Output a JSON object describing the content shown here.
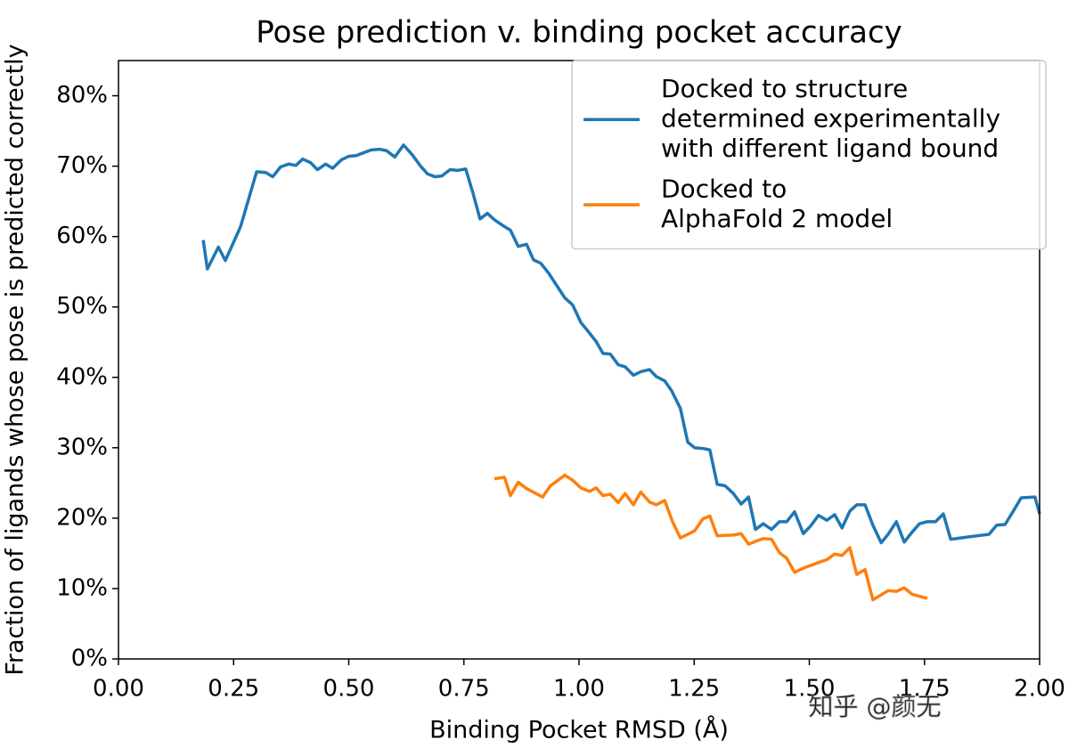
{
  "chart_data": {
    "type": "line",
    "title": "Pose prediction v. binding pocket accuracy",
    "xlabel": "Binding Pocket RMSD (Å)",
    "ylabel": "Fraction of ligands whose pose is predicted correctly",
    "watermark": "知乎 @颜无",
    "xlim": [
      0,
      2.0
    ],
    "ylim": [
      0,
      85
    ],
    "xticks": [
      {
        "value": 0,
        "label": "0.00"
      },
      {
        "value": 0.25,
        "label": "0.25"
      },
      {
        "value": 0.5,
        "label": "0.50"
      },
      {
        "value": 0.75,
        "label": "0.75"
      },
      {
        "value": 1.0,
        "label": "1.00"
      },
      {
        "value": 1.25,
        "label": "1.25"
      },
      {
        "value": 1.5,
        "label": "1.50"
      },
      {
        "value": 1.75,
        "label": "1.75"
      },
      {
        "value": 2.0,
        "label": "2.00"
      }
    ],
    "yticks": [
      {
        "value": 0,
        "label": "0%"
      },
      {
        "value": 10,
        "label": "10%"
      },
      {
        "value": 20,
        "label": "20%"
      },
      {
        "value": 30,
        "label": "30%"
      },
      {
        "value": 40,
        "label": "40%"
      },
      {
        "value": 50,
        "label": "50%"
      },
      {
        "value": 60,
        "label": "60%"
      },
      {
        "value": 70,
        "label": "70%"
      },
      {
        "value": 80,
        "label": "80%"
      }
    ],
    "legend": "upper right",
    "series": [
      {
        "name": "Docked to structure\ndetermined experimentally\nwith different ligand bound",
        "color": "#1f77b4",
        "x": [
          0.184,
          0.193,
          0.217,
          0.232,
          0.25,
          0.265,
          0.3,
          0.32,
          0.335,
          0.352,
          0.37,
          0.385,
          0.4,
          0.417,
          0.432,
          0.45,
          0.465,
          0.484,
          0.5,
          0.516,
          0.532,
          0.549,
          0.567,
          0.582,
          0.6,
          0.619,
          0.638,
          0.656,
          0.671,
          0.687,
          0.702,
          0.72,
          0.737,
          0.754,
          0.77,
          0.785,
          0.801,
          0.816,
          0.836,
          0.851,
          0.868,
          0.886,
          0.901,
          0.917,
          0.934,
          0.952,
          0.969,
          0.986,
          1.004,
          1.019,
          1.037,
          1.052,
          1.068,
          1.085,
          1.1,
          1.118,
          1.134,
          1.153,
          1.168,
          1.186,
          1.201,
          1.22,
          1.236,
          1.251,
          1.269,
          1.284,
          1.3,
          1.317,
          1.335,
          1.352,
          1.368,
          1.383,
          1.4,
          1.418,
          1.435,
          1.451,
          1.468,
          1.487,
          1.503,
          1.52,
          1.538,
          1.555,
          1.571,
          1.588,
          1.603,
          1.621,
          1.638,
          1.656,
          1.671,
          1.689,
          1.706,
          1.723,
          1.739,
          1.756,
          1.774,
          1.791,
          1.807,
          1.841,
          1.89,
          1.907,
          1.925,
          1.942,
          1.96,
          1.99,
          2.0
        ],
        "values": [
          59.5,
          55.4,
          58.5,
          56.6,
          59.2,
          61.4,
          69.2,
          69.1,
          68.5,
          69.9,
          70.3,
          70.1,
          71.0,
          70.5,
          69.5,
          70.3,
          69.7,
          70.9,
          71.4,
          71.5,
          71.9,
          72.3,
          72.4,
          72.2,
          71.3,
          73.0,
          71.6,
          70.0,
          68.9,
          68.5,
          68.6,
          69.5,
          69.4,
          69.6,
          66.1,
          62.5,
          63.3,
          62.4,
          61.5,
          60.9,
          58.6,
          58.9,
          56.7,
          56.2,
          54.8,
          53.0,
          51.3,
          50.3,
          47.8,
          46.6,
          45.1,
          43.4,
          43.3,
          41.8,
          41.5,
          40.3,
          40.8,
          41.1,
          40.1,
          39.5,
          38.1,
          35.6,
          30.8,
          30.0,
          29.9,
          29.7,
          24.8,
          24.6,
          23.5,
          22.0,
          23.0,
          18.4,
          19.2,
          18.4,
          19.5,
          19.5,
          20.9,
          17.8,
          18.9,
          20.4,
          19.7,
          20.5,
          18.6,
          21.0,
          21.9,
          21.9,
          19.0,
          16.5,
          17.7,
          19.5,
          16.6,
          18.0,
          19.2,
          19.5,
          19.5,
          20.6,
          17.0,
          17.3,
          17.7,
          19.0,
          19.1,
          20.9,
          22.9,
          23.0,
          20.6
        ]
      },
      {
        "name": "Docked to\nAlphaFold 2 model",
        "color": "#ff7f0e",
        "x": [
          0.816,
          0.838,
          0.851,
          0.868,
          0.886,
          0.921,
          0.938,
          0.969,
          0.986,
          1.004,
          1.023,
          1.037,
          1.052,
          1.068,
          1.085,
          1.1,
          1.118,
          1.134,
          1.153,
          1.168,
          1.186,
          1.203,
          1.22,
          1.236,
          1.251,
          1.269,
          1.284,
          1.3,
          1.335,
          1.352,
          1.368,
          1.383,
          1.4,
          1.418,
          1.435,
          1.451,
          1.468,
          1.487,
          1.52,
          1.538,
          1.555,
          1.571,
          1.588,
          1.603,
          1.621,
          1.638,
          1.656,
          1.671,
          1.689,
          1.706,
          1.723,
          1.756
        ],
        "values": [
          25.6,
          25.8,
          23.2,
          25.1,
          24.2,
          23.0,
          24.6,
          26.1,
          25.4,
          24.3,
          23.8,
          24.3,
          23.2,
          23.4,
          22.2,
          23.5,
          21.9,
          23.7,
          22.3,
          21.9,
          22.5,
          19.5,
          17.2,
          17.7,
          18.2,
          19.9,
          20.3,
          17.5,
          17.6,
          17.8,
          16.3,
          16.7,
          17.1,
          17.0,
          15.1,
          14.3,
          12.3,
          12.9,
          13.7,
          14.1,
          14.9,
          14.7,
          15.8,
          12.0,
          12.7,
          8.4,
          9.1,
          9.7,
          9.6,
          10.1,
          9.2,
          8.6
        ]
      }
    ]
  }
}
